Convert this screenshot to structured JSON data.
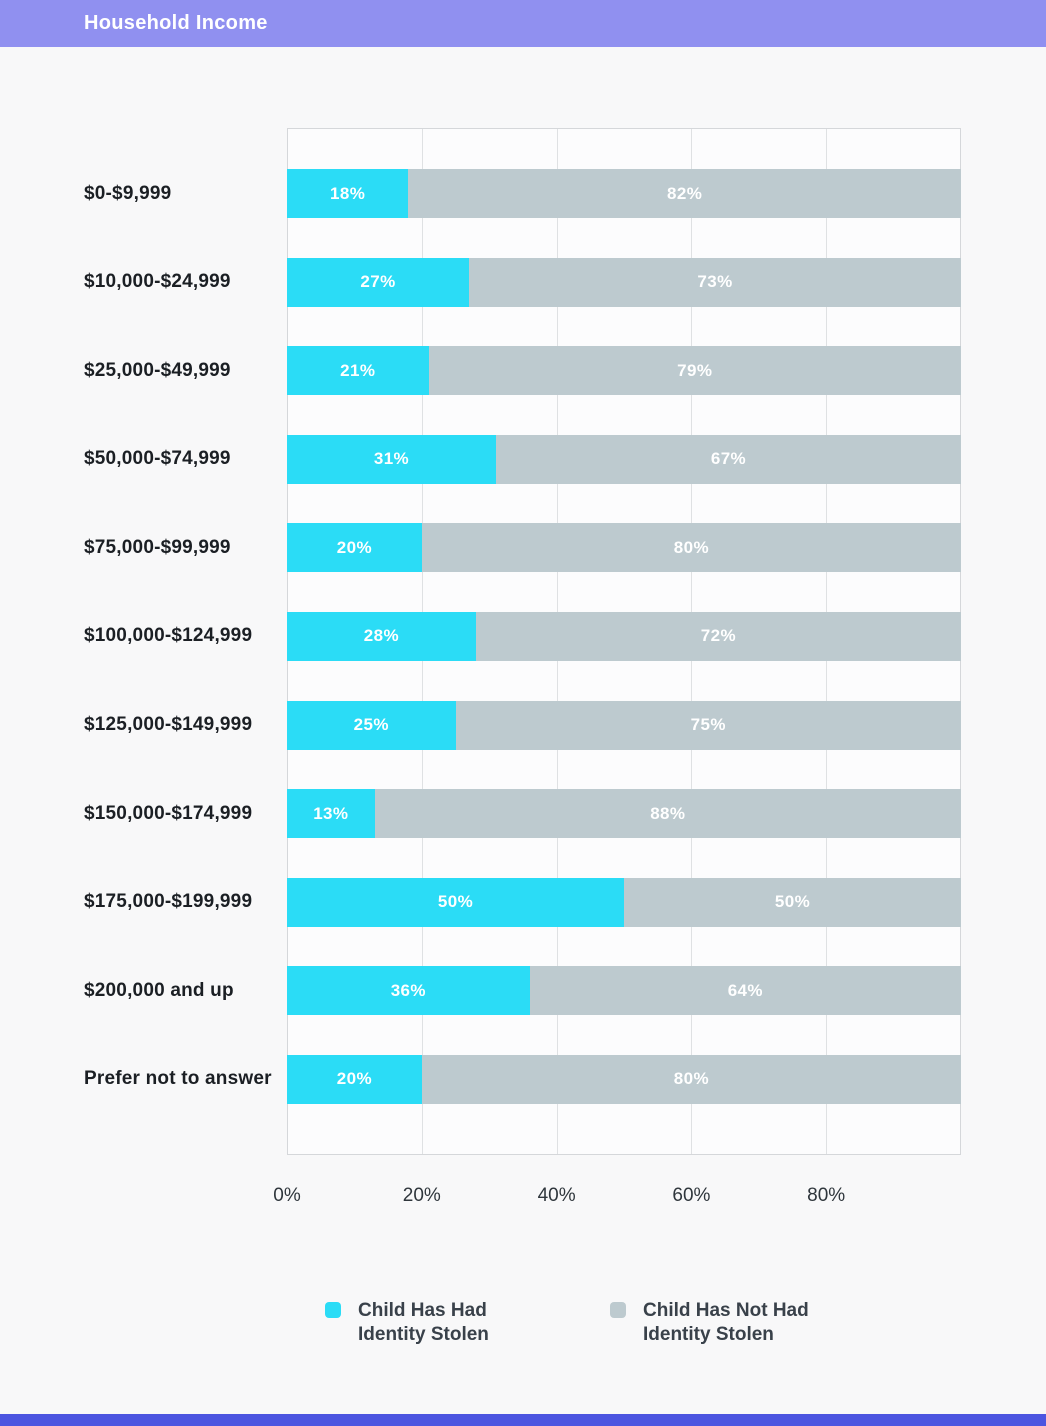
{
  "header": {
    "title": "Household Income",
    "bg_color": "#9090F0"
  },
  "chart_data": {
    "type": "bar",
    "variant": "horizontal-stacked-percent",
    "title": "Household Income",
    "categories": [
      "$0-$9,999",
      "$10,000-$24,999",
      "$25,000-$49,999",
      "$50,000-$74,999",
      "$75,000-$99,999",
      "$100,000-$124,999",
      "$125,000-$149,999",
      "$150,000-$174,999",
      "$175,000-$199,999",
      "$200,000 and up",
      "Prefer not to answer"
    ],
    "series": [
      {
        "name": "Child Has Had Identity Stolen",
        "color": "#2BDCF6",
        "values": [
          18,
          27,
          21,
          31,
          20,
          28,
          25,
          13,
          50,
          36,
          20
        ],
        "labels": [
          "18%",
          "27%",
          "21%",
          "31%",
          "20%",
          "28%",
          "25%",
          "13%",
          "50%",
          "36%",
          "20%"
        ]
      },
      {
        "name": "Child Has Not Had Identity Stolen",
        "color": "#BDCACF",
        "values": [
          82,
          73,
          79,
          67,
          80,
          72,
          75,
          88,
          50,
          64,
          80
        ],
        "labels": [
          "82%",
          "73%",
          "79%",
          "67%",
          "80%",
          "72%",
          "75%",
          "88%",
          "50%",
          "64%",
          "80%"
        ]
      }
    ],
    "x_ticks": [
      "0%",
      "20%",
      "40%",
      "60%",
      "80%"
    ],
    "x_tick_positions_pct": [
      0,
      20,
      40,
      60,
      80
    ],
    "xlim": [
      0,
      100
    ],
    "grid": "vertical lines every 20%",
    "legend_position": "bottom"
  },
  "legend": {
    "items": [
      {
        "label_lines": [
          "Child Has Had",
          "Identity Stolen"
        ],
        "color": "#2BDCF6"
      },
      {
        "label_lines": [
          "Child Has Not Had",
          "Identity Stolen"
        ],
        "color": "#BDCACF"
      }
    ]
  },
  "footer": {
    "accent_color": "#4C55E0"
  }
}
